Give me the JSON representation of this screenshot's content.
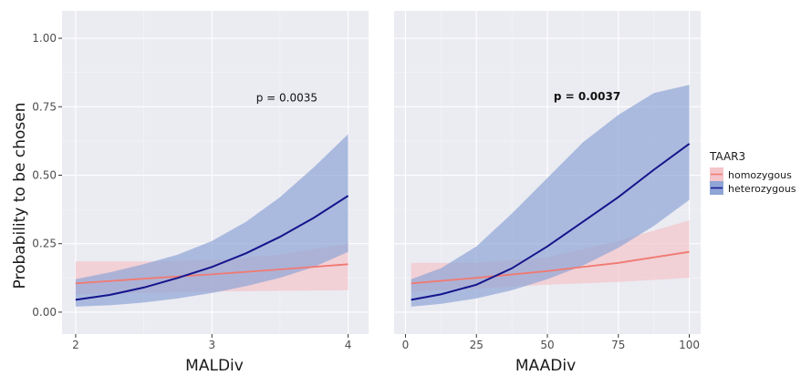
{
  "chart_data": {
    "type": "line",
    "ylabel": "Probability to be chosen",
    "legend": {
      "title": "TAAR3",
      "position": "right",
      "entries": [
        {
          "name": "homozygous",
          "color": "#f07a72",
          "band": "#f4c5ca"
        },
        {
          "name": "heterozygous",
          "color": "#14148c",
          "band": "#8fa5d6"
        }
      ]
    },
    "panels": [
      {
        "xlabel": "MALDiv",
        "xlim": [
          1.9,
          4.15
        ],
        "ylim": [
          -0.08,
          1.1
        ],
        "x_ticks": [
          "2",
          "3",
          "4"
        ],
        "y_ticks": [
          "0.00",
          "0.25",
          "0.50",
          "0.75",
          "1.00"
        ],
        "annotation": {
          "text": "p = 0.0035",
          "bold": false,
          "x": 3.55,
          "y": 0.77
        },
        "series": [
          {
            "name": "homozygous",
            "x": [
              2,
              2.5,
              3,
              3.5,
              4
            ],
            "values": [
              0.105,
              0.122,
              0.138,
              0.156,
              0.175
            ],
            "lower": [
              0.065,
              0.07,
              0.075,
              0.078,
              0.08
            ],
            "upper": [
              0.185,
              0.185,
              0.19,
              0.21,
              0.25
            ]
          },
          {
            "name": "heterozygous",
            "x": [
              2,
              2.25,
              2.5,
              2.75,
              3,
              3.25,
              3.5,
              3.75,
              4
            ],
            "values": [
              0.045,
              0.063,
              0.09,
              0.125,
              0.165,
              0.215,
              0.275,
              0.345,
              0.425
            ],
            "lower": [
              0.02,
              0.025,
              0.035,
              0.05,
              0.07,
              0.095,
              0.125,
              0.165,
              0.22
            ],
            "upper": [
              0.12,
              0.145,
              0.175,
              0.21,
              0.26,
              0.33,
              0.42,
              0.53,
              0.65
            ]
          }
        ]
      },
      {
        "xlabel": "MAADiv",
        "xlim": [
          -4,
          104
        ],
        "ylim": [
          -0.08,
          1.1
        ],
        "x_ticks": [
          "0",
          "25",
          "50",
          "75",
          "100"
        ],
        "y_ticks": [],
        "annotation": {
          "text": "p = 0.0037",
          "bold": true,
          "x": 64,
          "y": 0.775
        },
        "series": [
          {
            "name": "homozygous",
            "x": [
              2,
              25,
              50,
              75,
              100
            ],
            "values": [
              0.105,
              0.125,
              0.15,
              0.18,
              0.22
            ],
            "lower": [
              0.075,
              0.085,
              0.1,
              0.11,
              0.125
            ],
            "upper": [
              0.18,
              0.18,
              0.2,
              0.26,
              0.335
            ]
          },
          {
            "name": "heterozygous",
            "x": [
              2,
              12.5,
              25,
              37.5,
              50,
              62.5,
              75,
              87.5,
              100
            ],
            "values": [
              0.045,
              0.065,
              0.1,
              0.16,
              0.24,
              0.33,
              0.42,
              0.52,
              0.615
            ],
            "lower": [
              0.02,
              0.03,
              0.05,
              0.08,
              0.12,
              0.17,
              0.235,
              0.315,
              0.41
            ],
            "upper": [
              0.12,
              0.16,
              0.24,
              0.36,
              0.49,
              0.62,
              0.72,
              0.8,
              0.83
            ]
          }
        ]
      }
    ]
  }
}
